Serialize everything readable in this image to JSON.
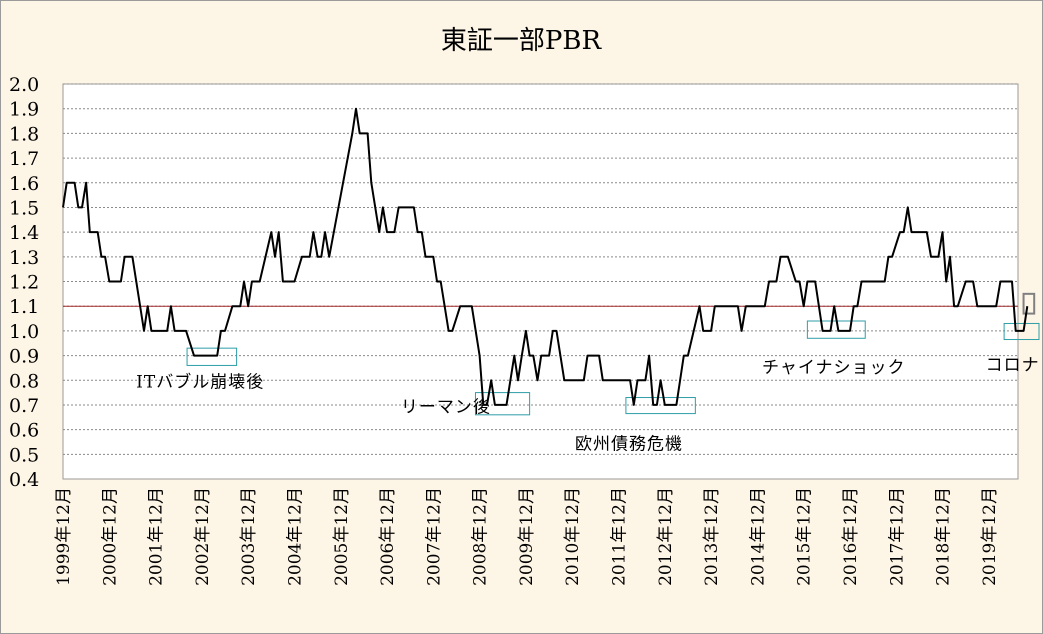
{
  "chart_data": {
    "type": "line",
    "title": "東証一部PBR",
    "ylim": [
      0.4,
      2.0
    ],
    "yticks": [
      "2.0",
      "1.9",
      "1.8",
      "1.7",
      "1.6",
      "1.5",
      "1.4",
      "1.3",
      "1.2",
      "1.1",
      "1.0",
      "0.9",
      "0.8",
      "0.7",
      "0.6",
      "0.5",
      "0.4"
    ],
    "xlim": [
      1999.92,
      2020.55
    ],
    "xticks": [
      {
        "x": 1999.92,
        "label": "1999年12月"
      },
      {
        "x": 2000.92,
        "label": "2000年12月"
      },
      {
        "x": 2001.92,
        "label": "2001年12月"
      },
      {
        "x": 2002.92,
        "label": "2002年12月"
      },
      {
        "x": 2003.92,
        "label": "2003年12月"
      },
      {
        "x": 2004.92,
        "label": "2004年12月"
      },
      {
        "x": 2005.92,
        "label": "2005年12月"
      },
      {
        "x": 2006.92,
        "label": "2006年12月"
      },
      {
        "x": 2007.92,
        "label": "2007年12月"
      },
      {
        "x": 2008.92,
        "label": "2008年12月"
      },
      {
        "x": 2009.92,
        "label": "2009年12月"
      },
      {
        "x": 2010.92,
        "label": "2010年12月"
      },
      {
        "x": 2011.92,
        "label": "2011年12月"
      },
      {
        "x": 2012.92,
        "label": "2012年12月"
      },
      {
        "x": 2013.92,
        "label": "2013年12月"
      },
      {
        "x": 2014.92,
        "label": "2014年12月"
      },
      {
        "x": 2015.92,
        "label": "2015年12月"
      },
      {
        "x": 2016.92,
        "label": "2016年12月"
      },
      {
        "x": 2017.92,
        "label": "2017年12月"
      },
      {
        "x": 2018.92,
        "label": "2018年12月"
      },
      {
        "x": 2019.92,
        "label": "2019年12月"
      }
    ],
    "grid": true,
    "reference_line": {
      "y": 1.1,
      "color": "#a0282a"
    },
    "series": [
      {
        "color": "#000000",
        "points": [
          [
            1999.92,
            1.5
          ],
          [
            2000.0,
            1.6
          ],
          [
            2000.17,
            1.6
          ],
          [
            2000.25,
            1.5
          ],
          [
            2000.33,
            1.5
          ],
          [
            2000.42,
            1.6
          ],
          [
            2000.5,
            1.4
          ],
          [
            2000.67,
            1.4
          ],
          [
            2000.75,
            1.3
          ],
          [
            2000.83,
            1.3
          ],
          [
            2000.92,
            1.2
          ],
          [
            2001.17,
            1.2
          ],
          [
            2001.25,
            1.3
          ],
          [
            2001.42,
            1.3
          ],
          [
            2001.67,
            1.0
          ],
          [
            2001.75,
            1.1
          ],
          [
            2001.83,
            1.0
          ],
          [
            2002.17,
            1.0
          ],
          [
            2002.25,
            1.1
          ],
          [
            2002.33,
            1.0
          ],
          [
            2002.58,
            1.0
          ],
          [
            2002.75,
            0.9
          ],
          [
            2003.25,
            0.9
          ],
          [
            2003.33,
            1.0
          ],
          [
            2003.42,
            1.0
          ],
          [
            2003.58,
            1.1
          ],
          [
            2003.75,
            1.1
          ],
          [
            2003.83,
            1.2
          ],
          [
            2003.92,
            1.1
          ],
          [
            2004.0,
            1.2
          ],
          [
            2004.17,
            1.2
          ],
          [
            2004.42,
            1.4
          ],
          [
            2004.5,
            1.3
          ],
          [
            2004.58,
            1.4
          ],
          [
            2004.67,
            1.2
          ],
          [
            2004.92,
            1.2
          ],
          [
            2005.08,
            1.3
          ],
          [
            2005.25,
            1.3
          ],
          [
            2005.33,
            1.4
          ],
          [
            2005.42,
            1.3
          ],
          [
            2005.5,
            1.3
          ],
          [
            2005.58,
            1.4
          ],
          [
            2005.67,
            1.3
          ],
          [
            2006.17,
            1.8
          ],
          [
            2006.25,
            1.9
          ],
          [
            2006.33,
            1.8
          ],
          [
            2006.5,
            1.8
          ],
          [
            2006.58,
            1.6
          ],
          [
            2006.75,
            1.4
          ],
          [
            2006.83,
            1.5
          ],
          [
            2006.92,
            1.4
          ],
          [
            2007.08,
            1.4
          ],
          [
            2007.17,
            1.5
          ],
          [
            2007.5,
            1.5
          ],
          [
            2007.58,
            1.4
          ],
          [
            2007.67,
            1.4
          ],
          [
            2007.75,
            1.3
          ],
          [
            2007.92,
            1.3
          ],
          [
            2008.0,
            1.2
          ],
          [
            2008.08,
            1.2
          ],
          [
            2008.25,
            1.0
          ],
          [
            2008.33,
            1.0
          ],
          [
            2008.5,
            1.1
          ],
          [
            2008.75,
            1.1
          ],
          [
            2008.92,
            0.9
          ],
          [
            2009.0,
            0.7
          ],
          [
            2009.08,
            0.7
          ],
          [
            2009.17,
            0.8
          ],
          [
            2009.25,
            0.7
          ],
          [
            2009.5,
            0.7
          ],
          [
            2009.67,
            0.9
          ],
          [
            2009.75,
            0.8
          ],
          [
            2009.83,
            0.9
          ],
          [
            2009.92,
            1.0
          ],
          [
            2010.0,
            0.9
          ],
          [
            2010.08,
            0.9
          ],
          [
            2010.17,
            0.8
          ],
          [
            2010.25,
            0.9
          ],
          [
            2010.42,
            0.9
          ],
          [
            2010.5,
            1.0
          ],
          [
            2010.58,
            1.0
          ],
          [
            2010.75,
            0.8
          ],
          [
            2011.17,
            0.8
          ],
          [
            2011.25,
            0.9
          ],
          [
            2011.5,
            0.9
          ],
          [
            2011.58,
            0.8
          ],
          [
            2012.17,
            0.8
          ],
          [
            2012.25,
            0.7
          ],
          [
            2012.33,
            0.8
          ],
          [
            2012.5,
            0.8
          ],
          [
            2012.58,
            0.9
          ],
          [
            2012.67,
            0.7
          ],
          [
            2012.75,
            0.7
          ],
          [
            2012.83,
            0.8
          ],
          [
            2012.92,
            0.7
          ],
          [
            2013.17,
            0.7
          ],
          [
            2013.33,
            0.9
          ],
          [
            2013.42,
            0.9
          ],
          [
            2013.67,
            1.1
          ],
          [
            2013.75,
            1.0
          ],
          [
            2013.92,
            1.0
          ],
          [
            2014.0,
            1.1
          ],
          [
            2014.5,
            1.1
          ],
          [
            2014.58,
            1.0
          ],
          [
            2014.67,
            1.1
          ],
          [
            2015.08,
            1.1
          ],
          [
            2015.17,
            1.2
          ],
          [
            2015.33,
            1.2
          ],
          [
            2015.42,
            1.3
          ],
          [
            2015.58,
            1.3
          ],
          [
            2015.75,
            1.2
          ],
          [
            2015.83,
            1.2
          ],
          [
            2015.92,
            1.1
          ],
          [
            2016.0,
            1.2
          ],
          [
            2016.17,
            1.2
          ],
          [
            2016.33,
            1.0
          ],
          [
            2016.5,
            1.0
          ],
          [
            2016.58,
            1.1
          ],
          [
            2016.67,
            1.0
          ],
          [
            2016.92,
            1.0
          ],
          [
            2017.0,
            1.1
          ],
          [
            2017.08,
            1.1
          ],
          [
            2017.17,
            1.2
          ],
          [
            2017.67,
            1.2
          ],
          [
            2017.75,
            1.3
          ],
          [
            2017.83,
            1.3
          ],
          [
            2018.0,
            1.4
          ],
          [
            2018.08,
            1.4
          ],
          [
            2018.17,
            1.5
          ],
          [
            2018.25,
            1.4
          ],
          [
            2018.58,
            1.4
          ],
          [
            2018.67,
            1.3
          ],
          [
            2018.83,
            1.3
          ],
          [
            2018.92,
            1.4
          ],
          [
            2019.0,
            1.2
          ],
          [
            2019.08,
            1.3
          ],
          [
            2019.17,
            1.1
          ],
          [
            2019.25,
            1.1
          ],
          [
            2019.42,
            1.2
          ],
          [
            2019.58,
            1.2
          ],
          [
            2019.67,
            1.1
          ],
          [
            2020.08,
            1.1
          ],
          [
            2020.17,
            1.2
          ],
          [
            2020.42,
            1.2
          ],
          [
            2020.5,
            1.0
          ],
          [
            2020.67,
            1.0
          ],
          [
            2020.75,
            1.1
          ]
        ]
      }
    ],
    "annotations": [
      {
        "text": "ITバブル崩壊後",
        "x": 2001.5,
        "y": 0.77
      },
      {
        "text": "リーマン後",
        "x": 2007.22,
        "y": 0.67
      },
      {
        "text": "欧州債務危機",
        "x": 2010.98,
        "y": 0.52
      },
      {
        "text": "チャイナショック",
        "x": 2015.02,
        "y": 0.83
      },
      {
        "text": "コロナ",
        "x": 2019.85,
        "y": 0.84
      }
    ],
    "highlights": [
      {
        "x0": 2002.6,
        "x1": 2003.67,
        "y0": 0.86,
        "y1": 0.93,
        "color": "#2e9ea8"
      },
      {
        "x0": 2008.83,
        "x1": 2010.0,
        "y0": 0.66,
        "y1": 0.75,
        "color": "#2e9ea8"
      },
      {
        "x0": 2012.08,
        "x1": 2013.58,
        "y0": 0.665,
        "y1": 0.73,
        "color": "#2e9ea8"
      },
      {
        "x0": 2016.0,
        "x1": 2017.25,
        "y0": 0.97,
        "y1": 1.04,
        "color": "#2e9ea8"
      },
      {
        "x0": 2020.25,
        "x1": 2021.17,
        "y0": 0.965,
        "y1": 1.03,
        "color": "#2e9ea8"
      },
      {
        "x0": 2020.67,
        "x1": 2020.9,
        "y0": 1.07,
        "y1": 1.15,
        "color": "#808080"
      }
    ]
  }
}
